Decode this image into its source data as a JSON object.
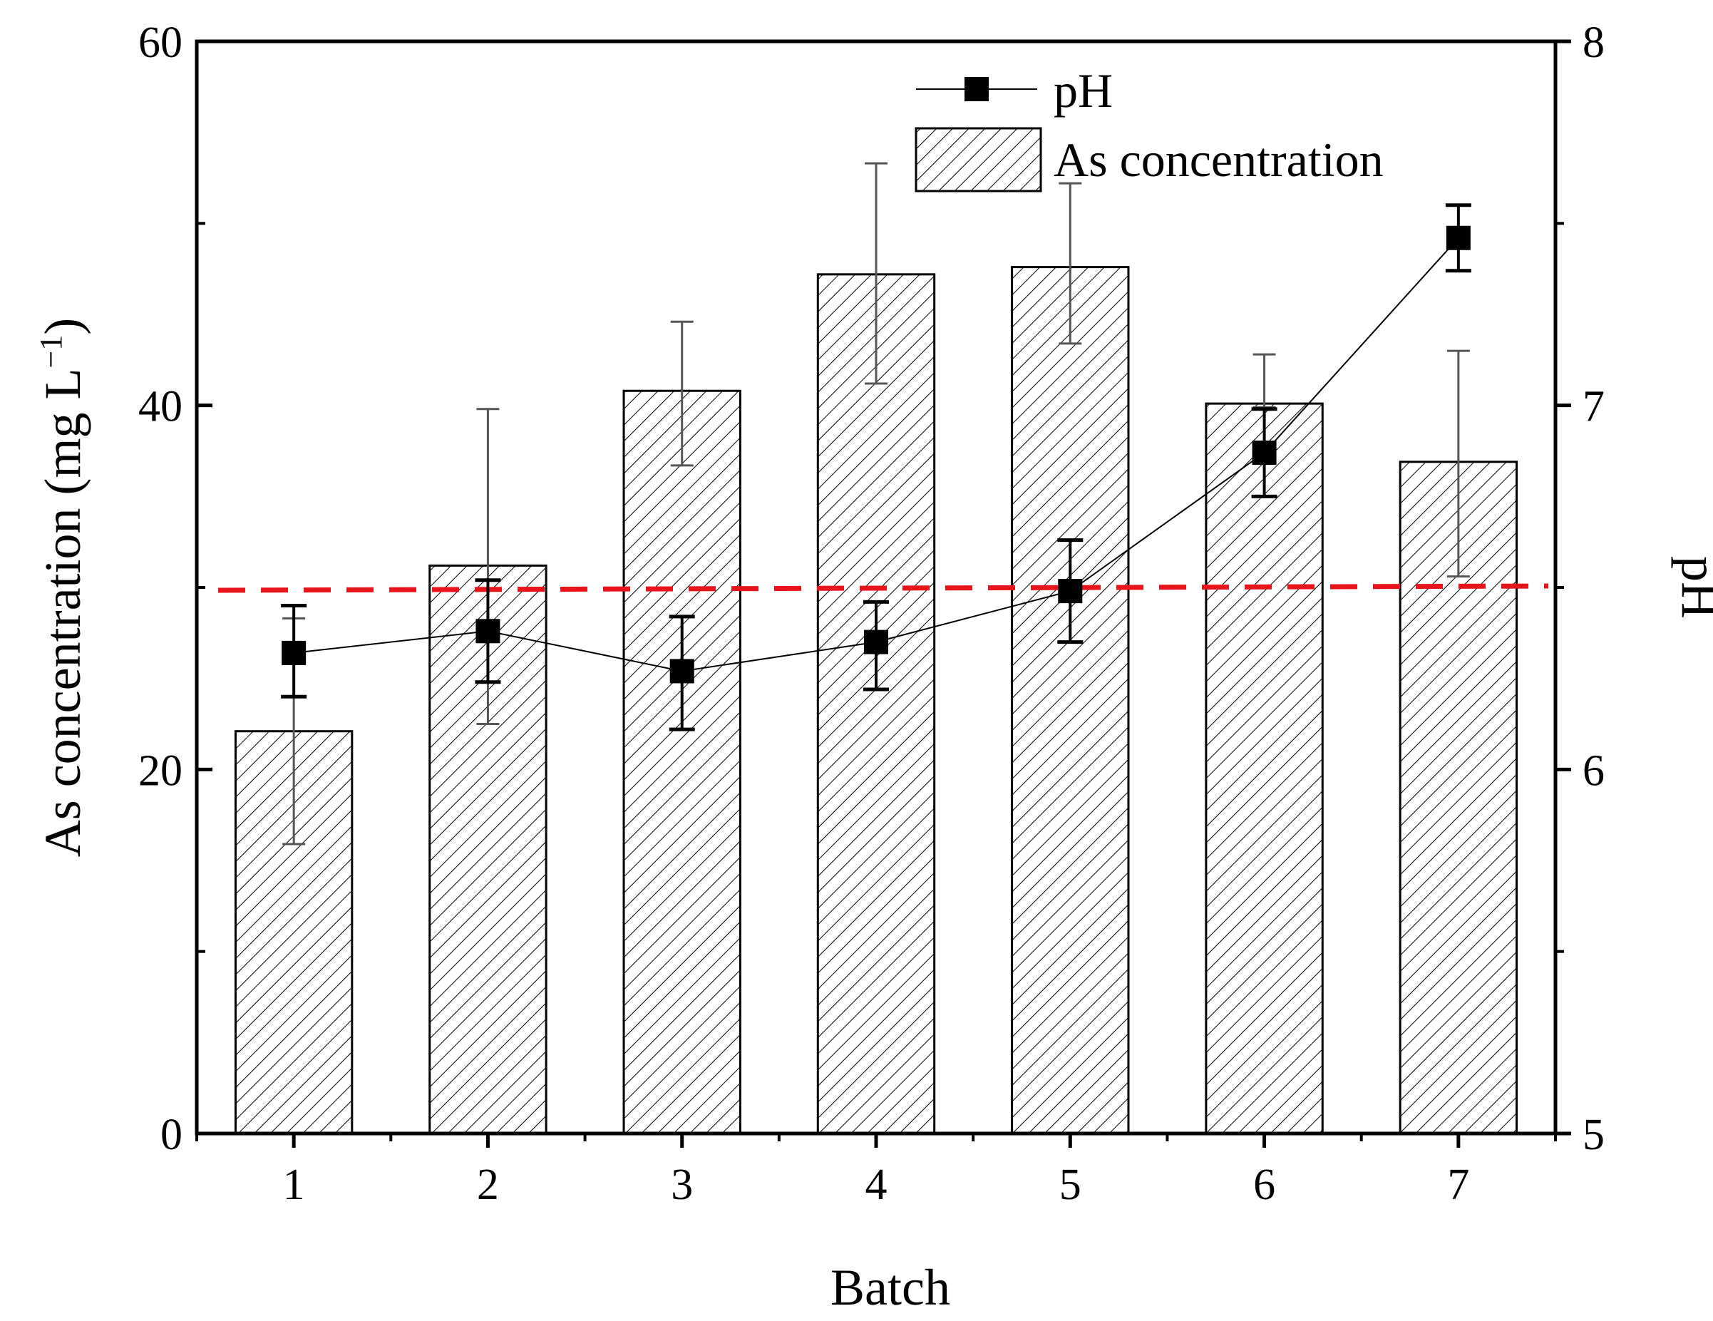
{
  "chart_data": {
    "type": "bar",
    "title": "",
    "xlabel": "Batch",
    "ylabel": "As concentration (mg L",
    "ylabel_superscript": "−1",
    "ylabel_close": ")",
    "y2label": "pH",
    "categories": [
      "1",
      "2",
      "3",
      "4",
      "5",
      "6",
      "7"
    ],
    "ylim": [
      0,
      60
    ],
    "yticks": [
      "0",
      "20",
      "40",
      "60"
    ],
    "y2lim": [
      5,
      8
    ],
    "y2ticks": [
      "5",
      "6",
      "7",
      "8"
    ],
    "series": [
      {
        "name": "As concentration",
        "type": "bar",
        "axis": "left",
        "pattern": "diagonal-hatch",
        "values": [
          22.1,
          31.2,
          40.8,
          47.2,
          47.6,
          40.1,
          36.9
        ],
        "error_low": [
          15.9,
          22.5,
          36.7,
          41.2,
          43.4,
          39.9,
          30.6
        ],
        "error_high": [
          28.3,
          39.8,
          44.6,
          53.3,
          52.2,
          42.8,
          43.0
        ]
      },
      {
        "name": "pH",
        "type": "line",
        "axis": "right",
        "marker": "square",
        "values": [
          6.32,
          6.38,
          6.27,
          6.35,
          6.49,
          6.87,
          7.46
        ],
        "error_low": [
          6.2,
          6.24,
          6.11,
          6.22,
          6.35,
          6.75,
          7.37
        ],
        "error_high": [
          6.45,
          6.52,
          6.42,
          6.46,
          6.63,
          6.99,
          7.55
        ]
      }
    ],
    "reference_line": {
      "axis": "right",
      "value": 6.5,
      "style": "dashed",
      "color": "#e8141b"
    },
    "legend": {
      "position": "top-center",
      "entries": [
        "pH",
        "As concentration"
      ]
    }
  }
}
